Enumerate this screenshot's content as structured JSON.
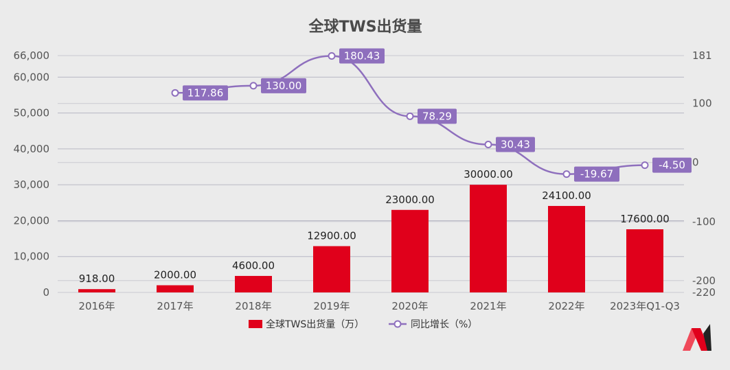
{
  "chart_data": {
    "type": "bar",
    "title": "全球TWS出货量",
    "categories": [
      "2016年",
      "2017年",
      "2018年",
      "2019年",
      "2020年",
      "2021年",
      "2022年",
      "2023年Q1-Q3"
    ],
    "series": [
      {
        "name": "全球TWS出货量（万）",
        "type": "bar",
        "axis": "left",
        "color": "#e0001b",
        "values": [
          918,
          2000,
          4600,
          12900,
          23000,
          30000,
          24100,
          17600
        ],
        "labels": [
          "918.00",
          "2000.00",
          "4600.00",
          "12900.00",
          "23000.00",
          "30000.00",
          "24100.00",
          "17600.00"
        ]
      },
      {
        "name": "同比增长（%）",
        "type": "line",
        "axis": "right",
        "color": "#8e6fbd",
        "values": [
          null,
          117.86,
          130.0,
          180.43,
          78.29,
          30.43,
          -19.67,
          -4.5
        ],
        "labels": [
          "",
          "117.86",
          "130.00",
          "180.43",
          "78.29",
          "30.43",
          "-19.67",
          "-4.50"
        ]
      }
    ],
    "left_axis": {
      "ylim": [
        0,
        66000
      ],
      "ticks": [
        0,
        10000,
        20000,
        30000,
        40000,
        50000,
        60000,
        66000
      ],
      "tick_labels": [
        "0",
        "10,000",
        "20,000",
        "30,000",
        "40,000",
        "50,000",
        "60,000",
        "66,000"
      ]
    },
    "right_axis": {
      "ylim": [
        -220,
        181
      ],
      "ticks": [
        -220,
        -200,
        -100,
        0,
        100,
        181
      ],
      "tick_labels": [
        "-220",
        "-200",
        "-100",
        "0",
        "100",
        "181"
      ]
    },
    "grid": true,
    "legend_position": "bottom-center"
  }
}
